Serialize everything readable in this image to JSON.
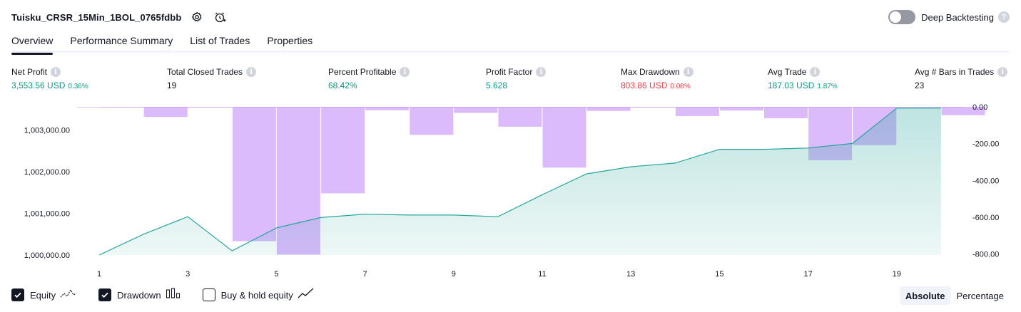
{
  "header": {
    "strategy_name": "Tuisku_CRSR_15Min_1BOL_0765fdbb",
    "deep_backtesting_label": "Deep Backtesting",
    "help_glyph": "?"
  },
  "tabs": [
    {
      "label": "Overview",
      "active": true
    },
    {
      "label": "Performance Summary",
      "active": false
    },
    {
      "label": "List of Trades",
      "active": false
    },
    {
      "label": "Properties",
      "active": false
    }
  ],
  "metrics": {
    "net_profit": {
      "label": "Net Profit",
      "value": "3,553.56 USD",
      "pct": "0.36%"
    },
    "total_closed_trades": {
      "label": "Total Closed Trades",
      "value": "19"
    },
    "percent_profitable": {
      "label": "Percent Profitable",
      "value": "68.42%"
    },
    "profit_factor": {
      "label": "Profit Factor",
      "value": "5.628"
    },
    "max_drawdown": {
      "label": "Max Drawdown",
      "value": "803.86 USD",
      "pct": "0.08%"
    },
    "avg_trade": {
      "label": "Avg Trade",
      "value": "187.03 USD",
      "pct": "1.87%"
    },
    "avg_bars_in_trades": {
      "label": "Avg # Bars in Trades",
      "value": "23"
    }
  },
  "colors": {
    "equity_line": "#26a69a",
    "equity_fill": "#26a69a",
    "drawdown_bar": "#c084fc",
    "positive": "#089981",
    "negative": "#f23645"
  },
  "chart_data": {
    "type": "area",
    "x": [
      1,
      2,
      3,
      4,
      5,
      6,
      7,
      8,
      9,
      10,
      11,
      12,
      13,
      14,
      15,
      16,
      17,
      18,
      19,
      20
    ],
    "x_tick_labels": [
      "1",
      "3",
      "5",
      "7",
      "9",
      "11",
      "13",
      "15",
      "17",
      "19"
    ],
    "series": [
      {
        "name": "Equity",
        "axis": "left",
        "type": "line",
        "values": [
          1000000,
          1000500,
          1000920,
          1000100,
          1000650,
          1000900,
          1000980,
          1000960,
          1000960,
          1000920,
          1001450,
          1001950,
          1002120,
          1002210,
          1002540,
          1002540,
          1002570,
          1002680,
          1003530,
          1003530
        ]
      },
      {
        "name": "Drawdown",
        "axis": "right",
        "type": "bar",
        "values": [
          -3,
          -55,
          -3,
          -730,
          -803,
          -470,
          -18,
          -152,
          -33,
          -108,
          -330,
          -22,
          -3,
          -50,
          -20,
          -62,
          -290,
          -208,
          -3,
          -45
        ]
      }
    ],
    "y_left_ticks": [
      "1,000,000.00",
      "1,001,000.00",
      "1,002,000.00",
      "1,003,000.00"
    ],
    "y_right_ticks": [
      "0.00",
      "-200.00",
      "-400.00",
      "-600.00",
      "-800.00"
    ],
    "y_left_range": [
      1000000,
      1003560
    ],
    "y_right_range": [
      -805,
      0
    ],
    "grid": false
  },
  "legend": {
    "items": [
      {
        "label": "Equity",
        "checked": true
      },
      {
        "label": "Drawdown",
        "checked": true
      },
      {
        "label": "Buy & hold equity",
        "checked": false
      }
    ]
  },
  "mode": {
    "absolute": "Absolute",
    "percentage": "Percentage"
  }
}
